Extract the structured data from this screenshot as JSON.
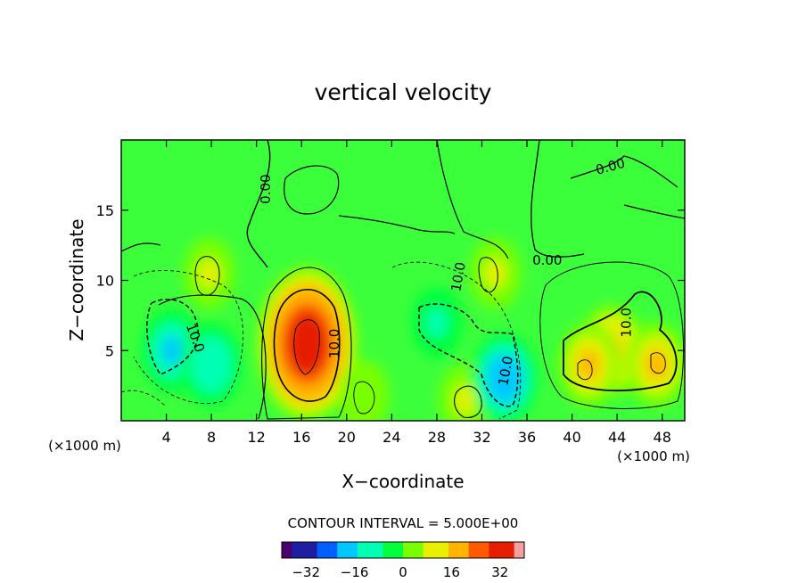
{
  "chart_data": {
    "type": "heatmap",
    "title": "vertical velocity",
    "xlabel": "X−coordinate",
    "ylabel": "Z−coordinate",
    "x_unit_left": "(×1000 m)",
    "x_unit_right": "(×1000 m)",
    "xlim": [
      0,
      50
    ],
    "ylim": [
      0,
      20
    ],
    "x_ticks": [
      4,
      8,
      12,
      16,
      20,
      24,
      28,
      32,
      36,
      40,
      44,
      48
    ],
    "y_ticks": [
      5,
      10,
      15
    ],
    "contour_interval_text": "CONTOUR INTERVAL = 5.000E+00",
    "colorbar": {
      "range": [
        -40,
        40
      ],
      "ticks": [
        -32,
        -16,
        0,
        16,
        32
      ],
      "tick_labels": [
        "−32",
        "−16",
        "0",
        "16",
        "32"
      ],
      "colors": [
        "#4b006e",
        "#1e1ea0",
        "#0060ff",
        "#00c8ff",
        "#00ffb4",
        "#00ff3c",
        "#78ff00",
        "#e6f000",
        "#ffb400",
        "#ff5a00",
        "#e61e00",
        "#f5a0a0"
      ]
    },
    "features": [
      {
        "sign": "updraft",
        "x": 16.5,
        "z": 5.5,
        "peak": 34
      },
      {
        "sign": "updraft",
        "x": 43.5,
        "z": 5,
        "peak": 18
      },
      {
        "sign": "updraft",
        "x": 47.5,
        "z": 4,
        "peak": 16
      },
      {
        "sign": "updraft",
        "x": 41.5,
        "z": 4,
        "peak": 15
      },
      {
        "sign": "updraft",
        "x": 7.8,
        "z": 10.5,
        "peak": 10
      },
      {
        "sign": "updraft",
        "x": 30.5,
        "z": 1.5,
        "peak": 10
      },
      {
        "sign": "updraft",
        "x": 33.2,
        "z": 10.5,
        "peak": 8
      },
      {
        "sign": "updraft",
        "x": 21.5,
        "z": 1.8,
        "peak": 6
      },
      {
        "sign": "downdraft",
        "x": 4.5,
        "z": 5,
        "peak": -16
      },
      {
        "sign": "downdraft",
        "x": 8,
        "z": 4,
        "peak": -14
      },
      {
        "sign": "downdraft",
        "x": 34,
        "z": 3,
        "peak": -20
      },
      {
        "sign": "downdraft",
        "x": 28,
        "z": 7,
        "peak": -12
      }
    ],
    "contour_labels": [
      {
        "text": "0.00",
        "x": 13.2,
        "z": 16.5,
        "rotate": -90
      },
      {
        "text": "0.00",
        "x": 43.5,
        "z": 17.8,
        "rotate": -15
      },
      {
        "text": "0.00",
        "x": 37.8,
        "z": 11.1,
        "rotate": 0
      },
      {
        "text": "10.0",
        "x": 6.2,
        "z": 5.8,
        "rotate": 70
      },
      {
        "text": "10.0",
        "x": 19.3,
        "z": 5.5,
        "rotate": -90
      },
      {
        "text": "10.0",
        "x": 30.3,
        "z": 10.2,
        "rotate": -80
      },
      {
        "text": "10.0",
        "x": 34.5,
        "z": 3.5,
        "rotate": -80
      },
      {
        "text": "10.0",
        "x": 45.2,
        "z": 7,
        "rotate": -90
      }
    ]
  }
}
